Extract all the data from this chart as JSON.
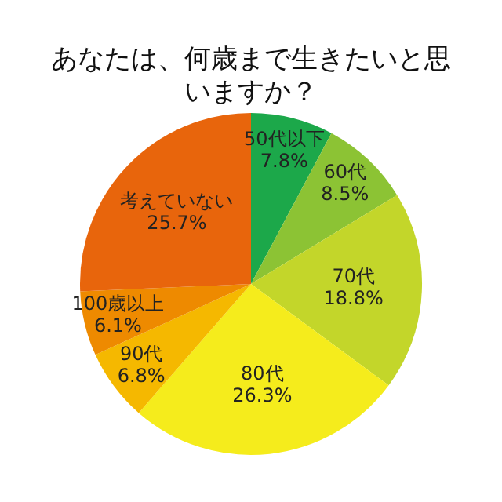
{
  "chart_data": {
    "type": "pie",
    "title": "あなたは、何歳まで生きたいと思いますか？",
    "categories": [
      "50代以下",
      "60代",
      "70代",
      "80代",
      "90代",
      "100歳以上",
      "考えていない"
    ],
    "values": [
      7.8,
      8.5,
      18.8,
      26.3,
      6.8,
      6.1,
      25.7
    ],
    "value_labels": [
      "7.8%",
      "8.5%",
      "18.8%",
      "26.3%",
      "6.8%",
      "6.1%",
      "25.7%"
    ],
    "colors": [
      "#1ca84a",
      "#8cc334",
      "#c3d62a",
      "#f5ec1c",
      "#f5b800",
      "#ee8a00",
      "#e8650c"
    ],
    "legend": false
  }
}
